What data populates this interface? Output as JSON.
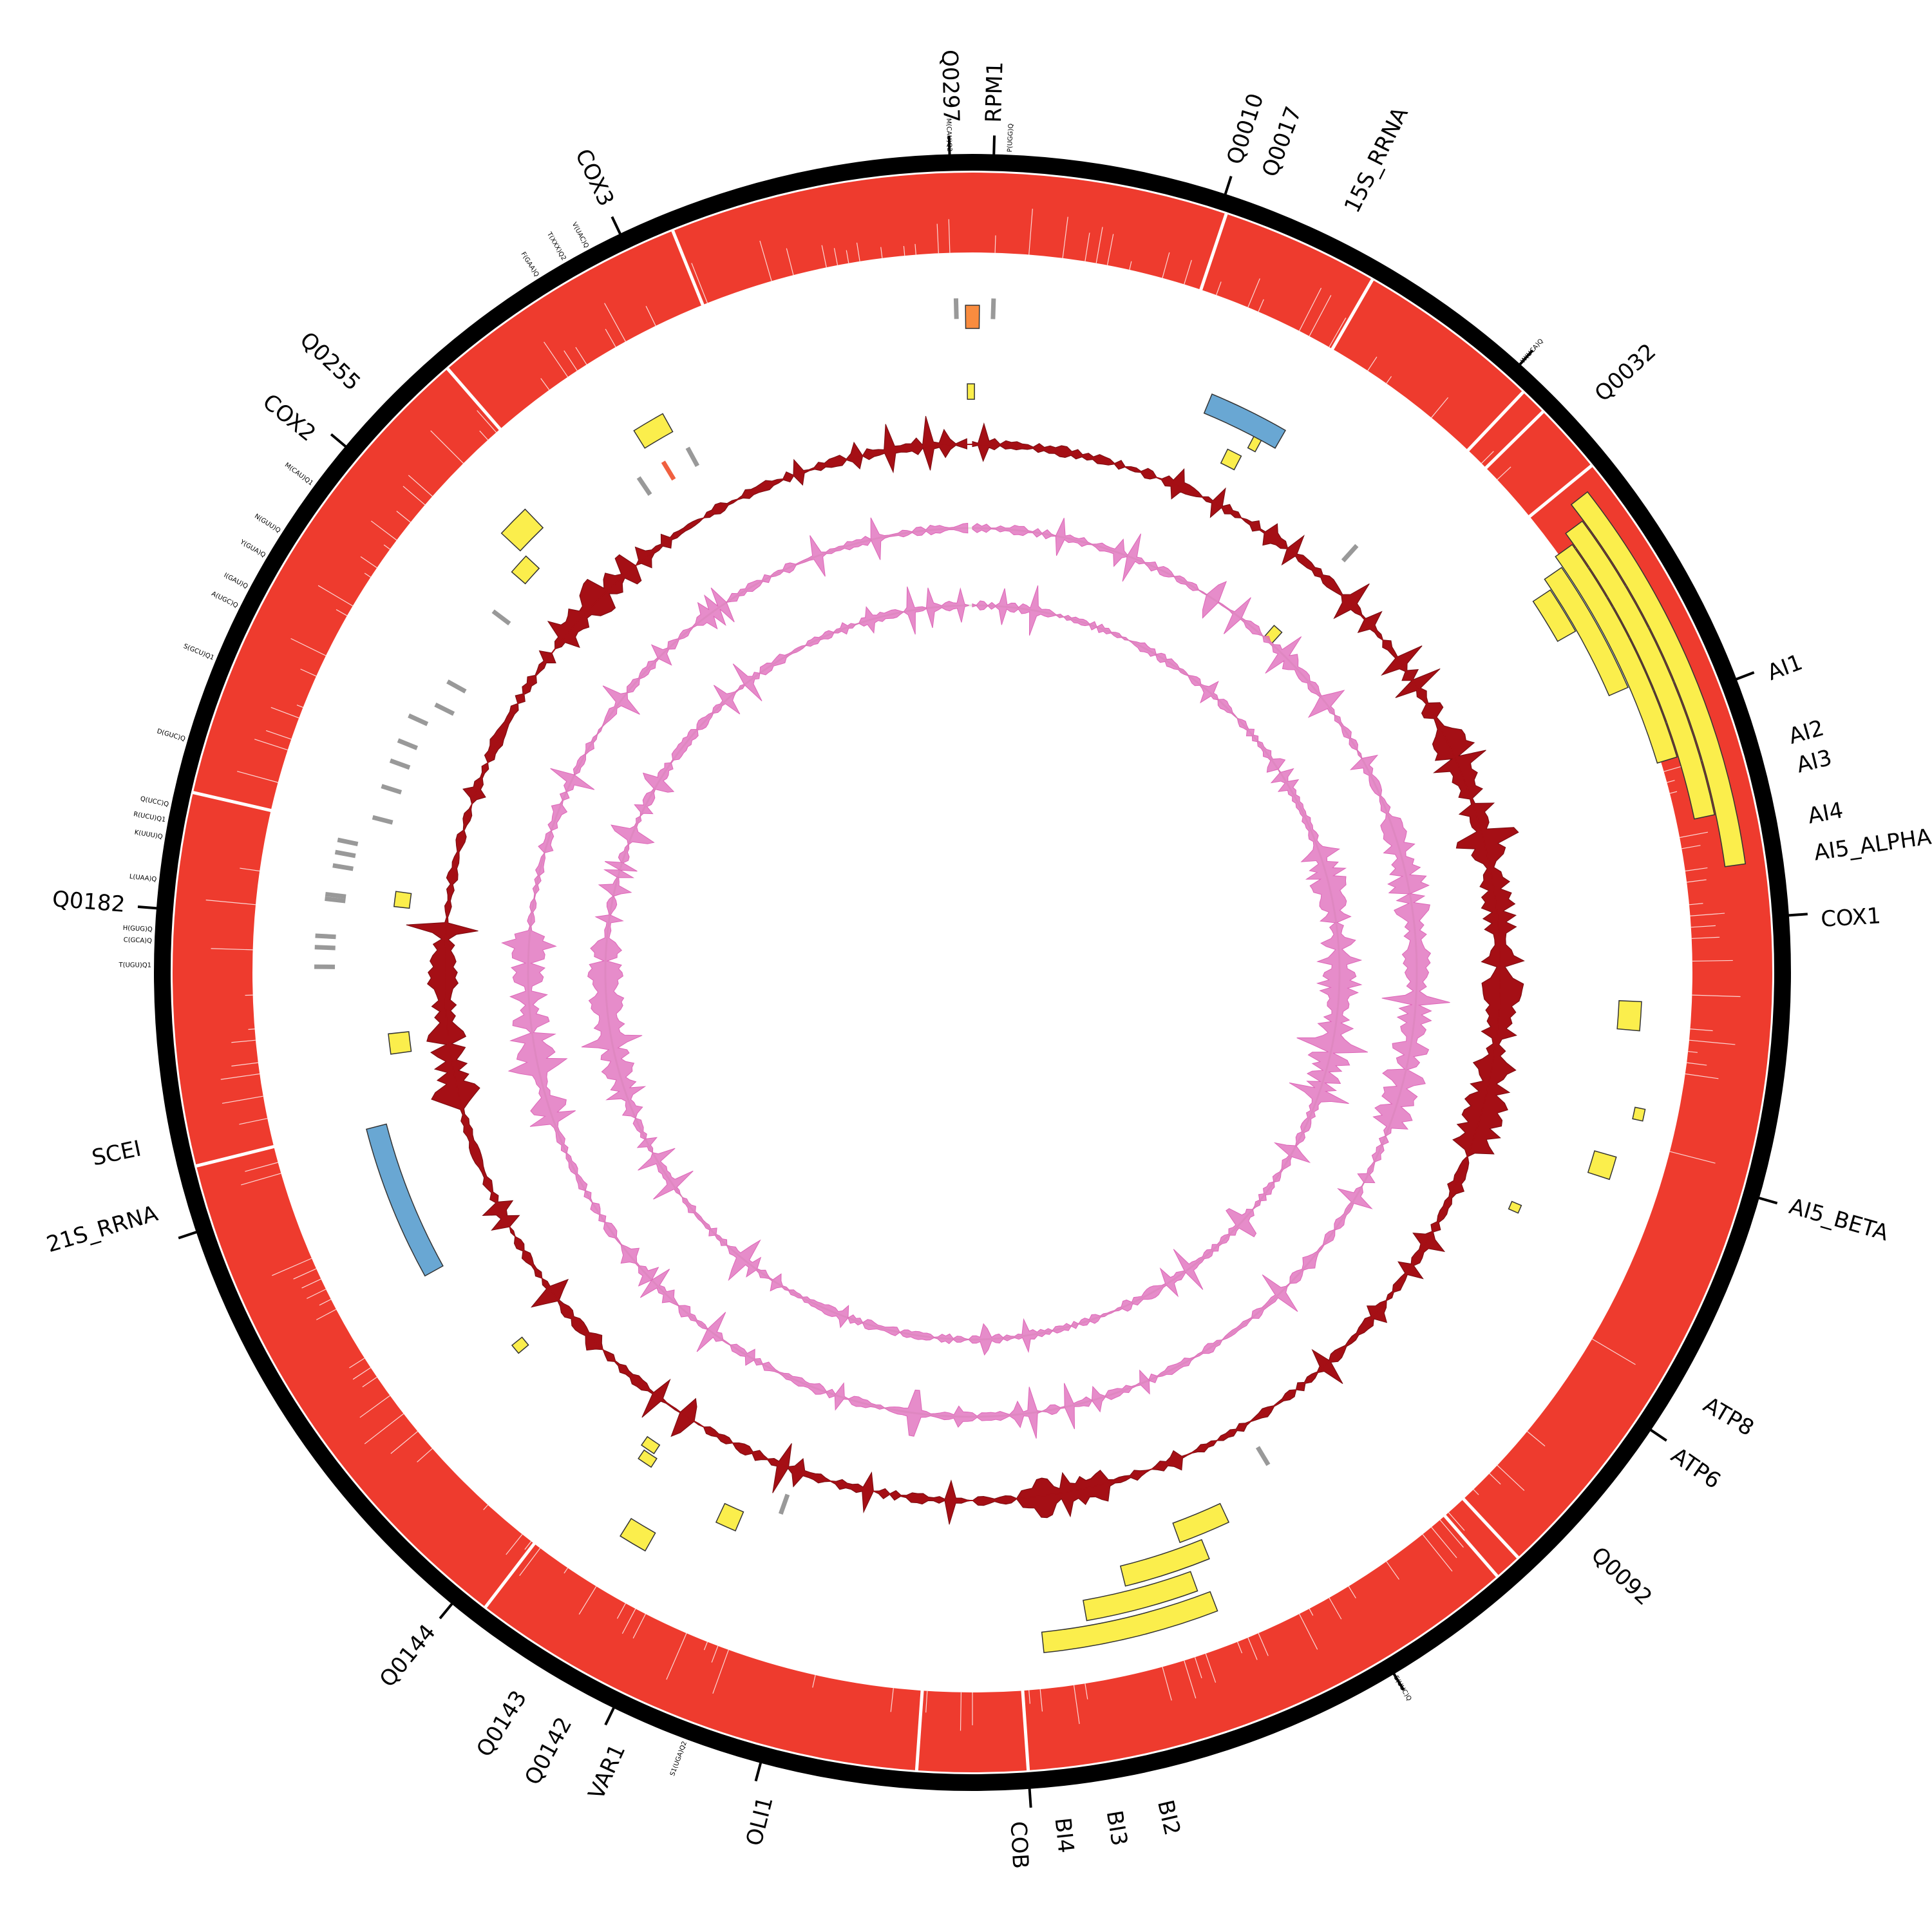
{
  "colors": {
    "ideogram": "#000000",
    "coverage": "#ee3b2e",
    "feature_yellow": "#fbee4c",
    "feature_blue": "#69a7d3",
    "feature_orange": "#f98c3f",
    "trna_gray": "#999999",
    "trna_red": "#f06040",
    "gc_track": "#a50f15",
    "skew_track": "#dd66b8",
    "skew_fill": "#e4ecdc"
  },
  "gene_labels": [
    {
      "text": "Q0297",
      "deg": -1.5
    },
    {
      "text": "RPM1",
      "deg": 1.5
    },
    {
      "text": "Q0010",
      "deg": 18.0
    },
    {
      "text": "Q0017",
      "deg": 20.5
    },
    {
      "text": "15S_RRNA",
      "deg": 26.5
    },
    {
      "text": "Q0032",
      "deg": 47.5
    },
    {
      "text": "AI1",
      "deg": 69.5
    },
    {
      "text": "AI2",
      "deg": 74.0
    },
    {
      "text": "AI3",
      "deg": 76.0
    },
    {
      "text": "AI4",
      "deg": 79.5
    },
    {
      "text": "AI5_ALPHA",
      "deg": 82.0
    },
    {
      "text": "COX1",
      "deg": 86.5
    },
    {
      "text": "AI5_BETA",
      "deg": 106.0
    },
    {
      "text": "ATP8",
      "deg": 120.5
    },
    {
      "text": "ATP6",
      "deg": 124.5
    },
    {
      "text": "Q0092",
      "deg": 133.0
    },
    {
      "text": "BI2",
      "deg": 167.0
    },
    {
      "text": "BI3",
      "deg": 170.5
    },
    {
      "text": "BI4",
      "deg": 174.0
    },
    {
      "text": "COB",
      "deg": 177.0
    },
    {
      "text": "OLI1",
      "deg": 194.0
    },
    {
      "text": "VAR1",
      "deg": 204.5
    },
    {
      "text": "Q0142",
      "deg": 208.5
    },
    {
      "text": "Q0143",
      "deg": 212.0
    },
    {
      "text": "Q0144",
      "deg": 219.5
    },
    {
      "text": "21S_RRNA",
      "deg": 253.5
    },
    {
      "text": "SCEI",
      "deg": 258.0
    },
    {
      "text": "Q0182",
      "deg": 274.5
    },
    {
      "text": "COX2",
      "deg": 309.0
    },
    {
      "text": "Q0255",
      "deg": 313.5
    },
    {
      "text": "COX3",
      "deg": 334.5
    }
  ],
  "trna_labels": [
    {
      "text": "M(CAU)Q2",
      "deg": -1.6
    },
    {
      "text": "P(UGG)Q",
      "deg": 2.6
    },
    {
      "text": "W(UCA)Q",
      "deg": 42.0
    },
    {
      "text": "E(UUC)Q",
      "deg": 149.0
    },
    {
      "text": "S1(UGA)Q2",
      "deg": 200.5
    },
    {
      "text": "L(UAA)Q",
      "deg": 276.5
    },
    {
      "text": "H(GUG)Q",
      "deg": 273.0
    },
    {
      "text": "C(GCA)Q",
      "deg": 272.2
    },
    {
      "text": "T(UGU)Q1",
      "deg": 270.5
    },
    {
      "text": "K(UUU)Q",
      "deg": 279.5
    },
    {
      "text": "R(UCU)Q1",
      "deg": 280.7
    },
    {
      "text": "Q(UCC)Q",
      "deg": 281.8
    },
    {
      "text": "D(GUC)Q",
      "deg": 286.5
    },
    {
      "text": "S(GCU)Q1",
      "deg": 292.5
    },
    {
      "text": "A(UGC)Q",
      "deg": 296.5
    },
    {
      "text": "I(GAU)Q",
      "deg": 298.0
    },
    {
      "text": "Y(GUA)Q",
      "deg": 300.5
    },
    {
      "text": "N(GUU)Q",
      "deg": 302.5
    },
    {
      "text": "M(CAU)Q1",
      "deg": 306.5
    },
    {
      "text": "F(GAA)Q",
      "deg": 328.0
    },
    {
      "text": "T(XXX)Q2",
      "deg": 330.2
    },
    {
      "text": "V(UAC)Q",
      "deg": 332.0
    }
  ],
  "ticks": [
    1.5,
    18.0,
    42.0,
    69.0,
    86.0,
    106.0,
    124.0,
    149.0,
    176.0,
    195.0,
    206.0,
    219.5,
    251.5,
    274.5,
    310.0,
    334.5,
    -1.6
  ],
  "coverage_gaps": [
    18.5,
    30.0,
    43.5,
    45.5,
    50.7,
    137.0,
    139.0,
    176.0,
    184.0,
    217.5,
    256.0,
    283.0,
    319.0,
    338.0
  ],
  "arc_features": [
    {
      "kind": "yellow",
      "start": 52.0,
      "end": 82.0,
      "r0": 1180,
      "r1": 1212
    },
    {
      "kind": "yellow",
      "start": 53.5,
      "end": 78.0,
      "r0": 1146,
      "r1": 1178
    },
    {
      "kind": "yellow",
      "start": 54.5,
      "end": 73.0,
      "r0": 1112,
      "r1": 1144
    },
    {
      "kind": "yellow",
      "start": 55.5,
      "end": 66.5,
      "r0": 1078,
      "r1": 1110
    },
    {
      "kind": "yellow",
      "start": 56.5,
      "end": 60.5,
      "r0": 1044,
      "r1": 1076
    },
    {
      "kind": "yellow",
      "start": 92.5,
      "end": 95.0,
      "r0": 1005,
      "r1": 1040
    },
    {
      "kind": "yellow",
      "start": 101.5,
      "end": 102.5,
      "r0": 1050,
      "r1": 1066
    },
    {
      "kind": "yellow",
      "start": 106.0,
      "end": 108.0,
      "r0": 1005,
      "r1": 1040
    },
    {
      "kind": "yellow",
      "start": 113.0,
      "end": 113.8,
      "r0": 910,
      "r1": 926
    },
    {
      "kind": "yellow",
      "start": 159.0,
      "end": 174.0,
      "r0": 1030,
      "r1": 1062
    },
    {
      "kind": "yellow",
      "start": 160.0,
      "end": 170.0,
      "r0": 990,
      "r1": 1022
    },
    {
      "kind": "yellow",
      "start": 158.0,
      "end": 166.0,
      "r0": 950,
      "r1": 982
    },
    {
      "kind": "yellow",
      "start": 155.0,
      "end": 160.0,
      "r0": 910,
      "r1": 942
    },
    {
      "kind": "yellow",
      "start": 203.0,
      "end": 205.0,
      "r0": 910,
      "r1": 942
    },
    {
      "kind": "yellow",
      "start": 209.5,
      "end": 212.0,
      "r0": 1000,
      "r1": 1032
    },
    {
      "kind": "yellow",
      "start": 213.0,
      "end": 214.5,
      "r0": 900,
      "r1": 916
    },
    {
      "kind": "yellow",
      "start": 213.5,
      "end": 215.0,
      "r0": 880,
      "r1": 896
    },
    {
      "kind": "yellow",
      "start": 230.0,
      "end": 231.0,
      "r0": 900,
      "r1": 920
    },
    {
      "kind": "yellow",
      "start": 262.0,
      "end": 264.0,
      "r0": 880,
      "r1": 912
    },
    {
      "kind": "yellow",
      "start": 276.5,
      "end": 278.0,
      "r0": 880,
      "r1": 904
    },
    {
      "kind": "yellow",
      "start": 311.0,
      "end": 313.0,
      "r0": 920,
      "r1": 948
    },
    {
      "kind": "yellow",
      "start": 313.0,
      "end": 316.0,
      "r0": 960,
      "r1": 1000
    },
    {
      "kind": "yellow",
      "start": 328.0,
      "end": 331.0,
      "r0": 960,
      "r1": 992
    },
    {
      "kind": "yellow",
      "start": 26.0,
      "end": 27.5,
      "r0": 880,
      "r1": 904
    },
    {
      "kind": "yellow",
      "start": 27.7,
      "end": 28.5,
      "r0": 920,
      "r1": 944
    },
    {
      "kind": "yellow",
      "start": -0.5,
      "end": 0.2,
      "r0": 890,
      "r1": 914
    },
    {
      "kind": "yellow",
      "start": 41.0,
      "end": 42.3,
      "r0": 690,
      "r1": 714
    },
    {
      "kind": "blue",
      "start": 22.5,
      "end": 30.0,
      "r0": 940,
      "r1": 972
    },
    {
      "kind": "blue",
      "start": 241.0,
      "end": 255.5,
      "r0": 940,
      "r1": 972
    },
    {
      "kind": "orange",
      "start": -0.6,
      "end": 0.6,
      "r0": 1000,
      "r1": 1036
    }
  ],
  "trna_marks": [
    {
      "deg": -1.4,
      "r": 1015,
      "color": "gray"
    },
    {
      "deg": 1.8,
      "r": 1015,
      "color": "gray"
    },
    {
      "deg": 326.0,
      "r": 895,
      "color": "gray"
    },
    {
      "deg": 328.8,
      "r": 895,
      "color": "red"
    },
    {
      "deg": 331.5,
      "r": 895,
      "color": "gray"
    },
    {
      "deg": 42.0,
      "r": 860,
      "color": "gray"
    },
    {
      "deg": 149.0,
      "r": 860,
      "color": "gray"
    },
    {
      "deg": 199.5,
      "r": 860,
      "color": "gray"
    },
    {
      "deg": 270.5,
      "r": 990,
      "color": "gray"
    },
    {
      "deg": 272.2,
      "r": 990,
      "color": "gray"
    },
    {
      "deg": 273.2,
      "r": 990,
      "color": "gray"
    },
    {
      "deg": 276.5,
      "r": 980,
      "color": "gray"
    },
    {
      "deg": 276.9,
      "r": 980,
      "color": "gray"
    },
    {
      "deg": 279.5,
      "r": 975,
      "color": "gray"
    },
    {
      "deg": 280.7,
      "r": 975,
      "color": "gray"
    },
    {
      "deg": 281.8,
      "r": 975,
      "color": "gray"
    },
    {
      "deg": 284.5,
      "r": 930,
      "color": "gray"
    },
    {
      "deg": 287.5,
      "r": 930,
      "color": "gray"
    },
    {
      "deg": 290.0,
      "r": 930,
      "color": "gray"
    },
    {
      "deg": 292.0,
      "r": 930,
      "color": "gray"
    },
    {
      "deg": 294.5,
      "r": 930,
      "color": "gray"
    },
    {
      "deg": 296.5,
      "r": 900,
      "color": "gray"
    },
    {
      "deg": 299.0,
      "r": 900,
      "color": "gray"
    },
    {
      "deg": 307.0,
      "r": 900,
      "color": "gray"
    }
  ]
}
